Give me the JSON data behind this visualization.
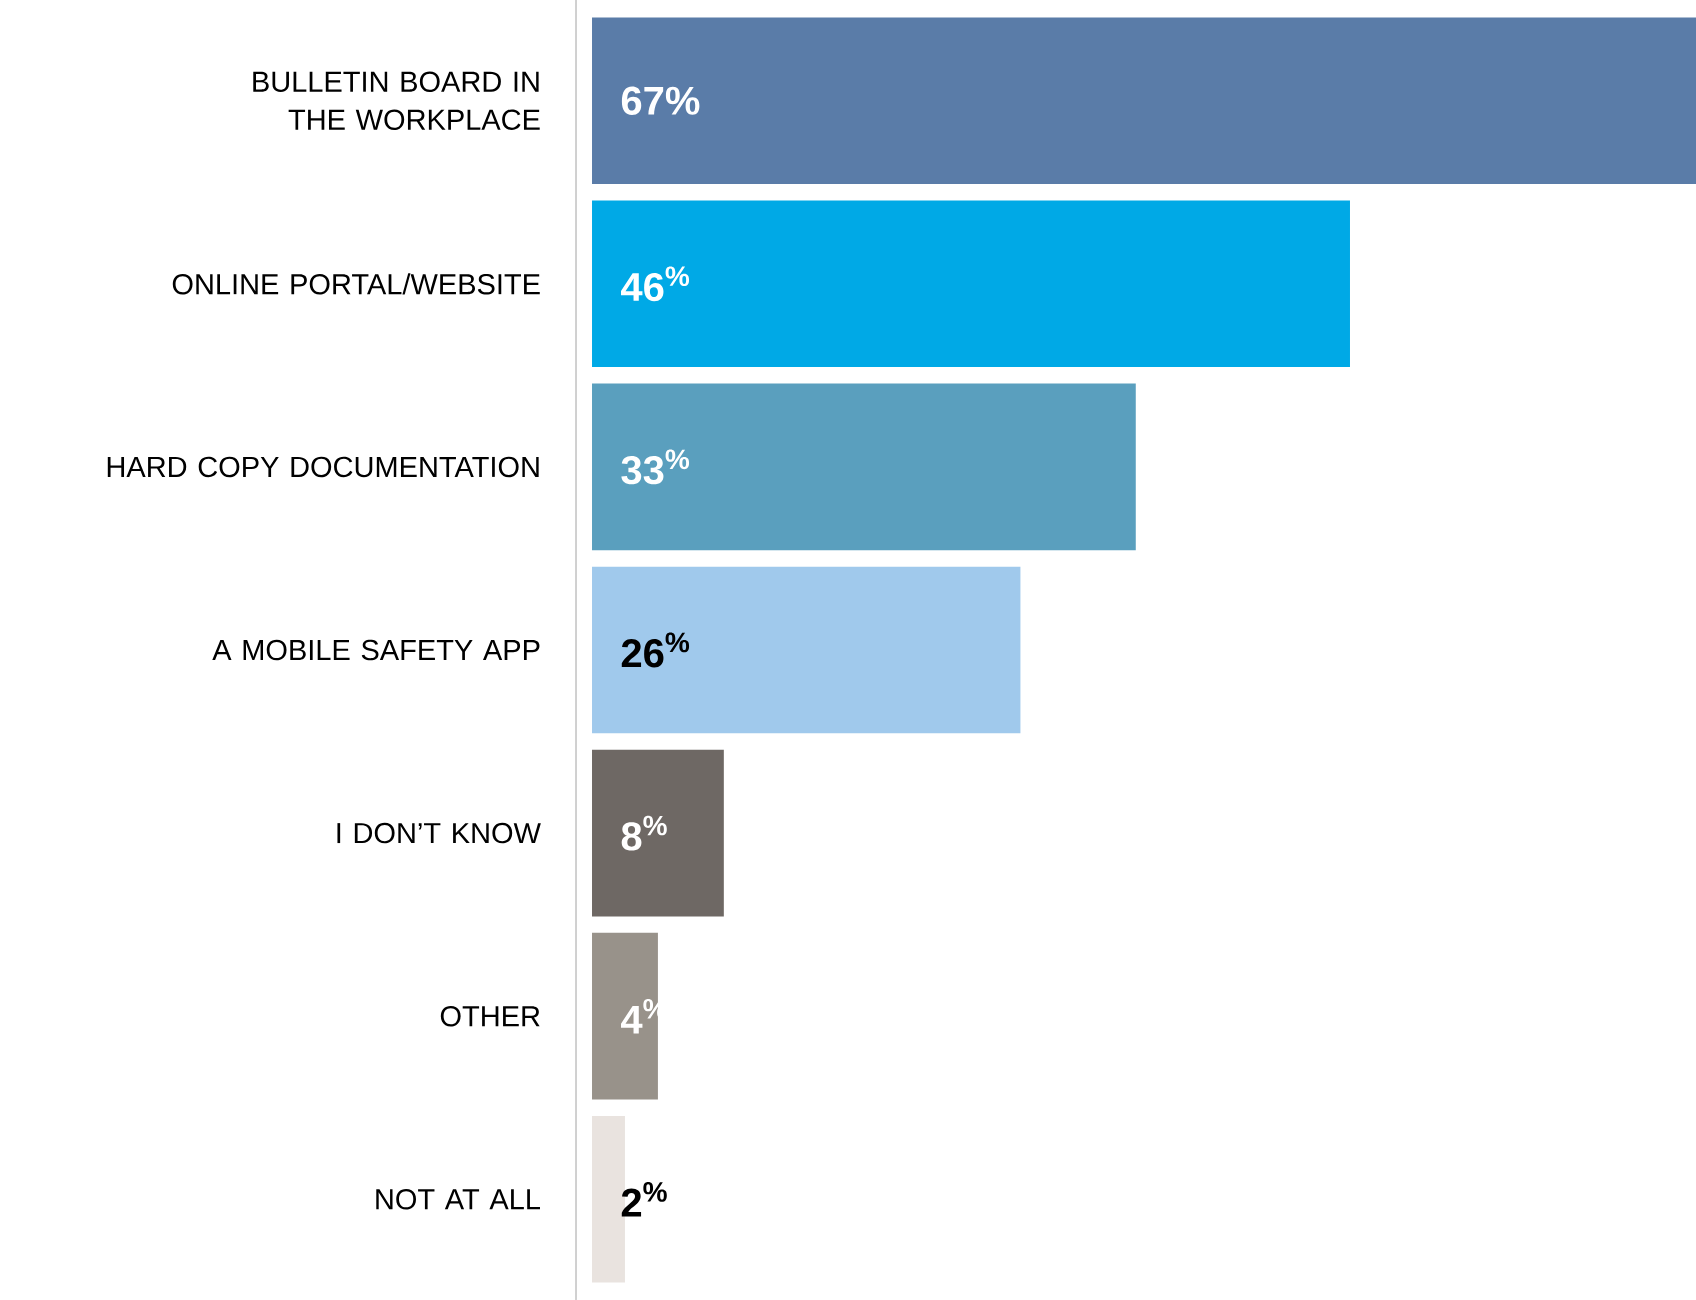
{
  "chart_data": {
    "type": "bar",
    "orientation": "horizontal",
    "categories": [
      "BULLETIN BOARD IN THE WORKPLACE",
      "ONLINE PORTAL/WEBSITE",
      "HARD COPY DOCUMENTATION",
      "A MOBILE SAFETY APP",
      "I DON’T KNOW",
      "OTHER",
      "NOT AT ALL"
    ],
    "values": [
      67,
      46,
      33,
      26,
      8,
      4,
      2
    ],
    "colors": [
      "#5a7ca8",
      "#00a9e6",
      "#5a9fbe",
      "#a0c9ec",
      "#6e6864",
      "#98928a",
      "#e9e3df"
    ],
    "data_labels": true,
    "value_labels": [
      "67%",
      "46$^{%}$",
      "33$^{%}$",
      "26$^{%}$",
      "8$^{%}$",
      "4$^{%}$",
      "2$^{%}$"
    ]
  }
}
